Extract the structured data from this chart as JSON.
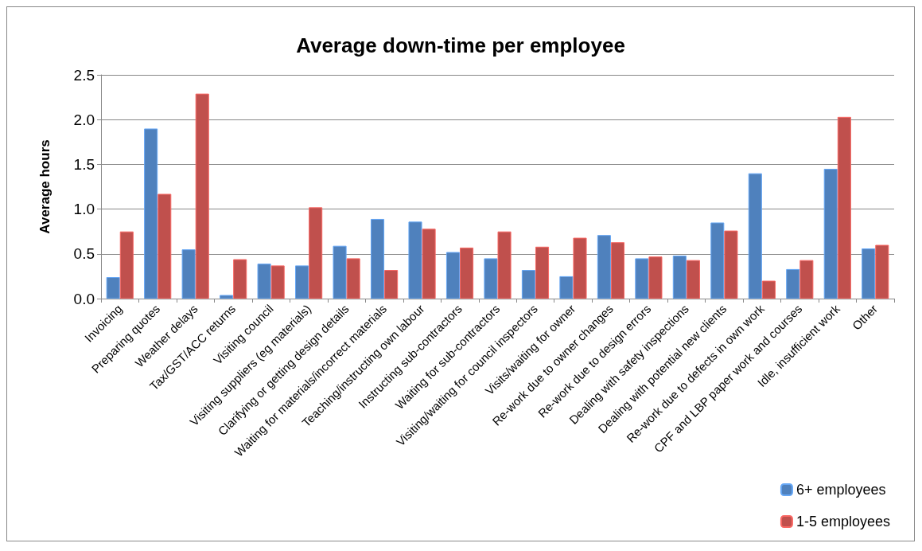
{
  "chart_data": {
    "type": "bar",
    "title": "Average down-time per employee",
    "ylabel": "Average hours",
    "categories": [
      "Invoicing",
      "Preparing quotes",
      "Weather delays",
      "Tax/GST/ACC returns",
      "Visiting council",
      "Visiting suppliers (eg materials)",
      "Clarifying or getting design details",
      "Waiting for materials/incorrect materials",
      "Teaching/instructing own labour",
      "Instructing sub-contractors",
      "Waiting for sub-contractors",
      "Visiting/waiting for council inspectors",
      "Visits/waiting for owner",
      "Re-work due to owner changes",
      "Re-work due to design errors",
      "Dealing with safety inspections",
      "Dealing with potential new clients",
      "Re-work due to defects in own work",
      "CPF and LBP paper work and courses",
      "Idle, insufficient work",
      "Other"
    ],
    "series": [
      {
        "name": "6+ employees",
        "color": "#4f81bd",
        "values": [
          0.24,
          1.9,
          0.55,
          0.04,
          0.39,
          0.37,
          0.59,
          0.89,
          0.86,
          0.52,
          0.45,
          0.32,
          0.25,
          0.71,
          0.45,
          0.48,
          0.85,
          1.4,
          0.33,
          1.45,
          0.56
        ]
      },
      {
        "name": "1-5 employees",
        "color": "#c0504d",
        "values": [
          0.75,
          1.17,
          2.29,
          0.44,
          0.37,
          1.02,
          0.45,
          0.32,
          0.78,
          0.57,
          0.75,
          0.58,
          0.68,
          0.63,
          0.47,
          0.43,
          0.76,
          0.2,
          0.43,
          2.03,
          0.6
        ]
      }
    ],
    "ylim": [
      0,
      2.5
    ],
    "yticks": [
      {
        "value": 0,
        "label": "0.0"
      },
      0.5,
      {
        "value": 1,
        "label": "1.0"
      },
      1.5,
      {
        "value": 2,
        "label": "2.0"
      },
      2.5
    ],
    "grid": "y",
    "legend": "bottom right"
  }
}
